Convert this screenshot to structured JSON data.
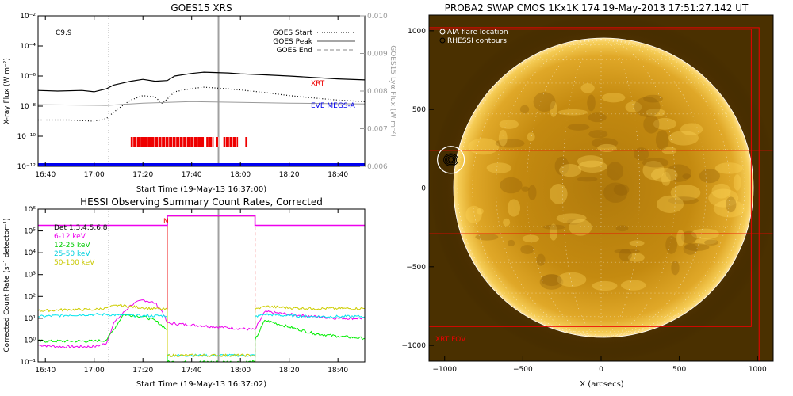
{
  "colors": {
    "goes_flux": "#000000",
    "goes_long_dotted": "#000000",
    "eve_lya": "#9a9a9a",
    "eve_megs_a": "#0000ee",
    "xrt_obs": "#ee0000",
    "peak_line": "#a0a0a0",
    "flare_box": "#ff0000",
    "fov_box": "#ee0000",
    "det_total": "#ee00ee",
    "band_6_12": "#ee00ee",
    "band_12_25": "#00ee00",
    "band_25_50": "#00e5ee",
    "band_50_100": "#cdcd00",
    "sun_disk": "#d69a10",
    "sun_limb": "#ffffff"
  },
  "chart_data": [
    {
      "type": "line",
      "title": "GOES15 XRS",
      "ylabel": "X-ray Flux (W m⁻²)",
      "y2label": "GOES15 Lyα Flux (W m⁻²)",
      "xlabel": "Start Time (19-May-13 16:37:00)",
      "annotation": "C9.9",
      "xlim": [
        "16:37",
        "18:51"
      ],
      "xticks": [
        "16:40",
        "17:00",
        "17:20",
        "17:40",
        "18:00",
        "18:20",
        "18:40"
      ],
      "ylim": [
        1e-12,
        0.01
      ],
      "yscale": "log",
      "yticks": [
        "10⁻²",
        "10⁻⁴",
        "10⁻⁶",
        "10⁻⁸",
        "10⁻¹⁰",
        "10⁻¹²"
      ],
      "y2lim": [
        0.006,
        0.01
      ],
      "y2ticks": [
        "0.010",
        "0.009",
        "0.008",
        "0.007",
        "0.006"
      ],
      "legend": {
        "position": "top-right",
        "entries": [
          "GOES Start",
          "GOES Peak",
          "GOES End"
        ]
      },
      "series": [
        {
          "name": "XRT",
          "x": [
            "16:37",
            "16:45",
            "16:55",
            "17:00",
            "17:05",
            "17:08",
            "17:15",
            "17:20",
            "17:25",
            "17:30",
            "17:33",
            "17:40",
            "17:45",
            "17:50",
            "17:55",
            "18:00",
            "18:10",
            "18:20",
            "18:30",
            "18:40",
            "18:51"
          ],
          "y": [
            1.1e-07,
            1e-07,
            1.1e-07,
            9e-08,
            1.4e-07,
            2.5e-07,
            4.5e-07,
            6e-07,
            4.5e-07,
            5e-07,
            1e-06,
            1.5e-06,
            1.8e-06,
            1.7e-06,
            1.6e-06,
            1.4e-06,
            1.2e-06,
            1e-06,
            8e-07,
            6.5e-07,
            5.5e-07
          ]
        },
        {
          "name": "",
          "x": [
            "16:37",
            "16:50",
            "17:00",
            "17:05",
            "17:08",
            "17:12",
            "17:15",
            "17:20",
            "17:25",
            "17:28",
            "17:30",
            "17:33",
            "17:40",
            "17:45",
            "17:50",
            "18:00",
            "18:10",
            "18:20",
            "18:30",
            "18:40",
            "18:51"
          ],
          "y": [
            1.2e-09,
            1.2e-09,
            1e-09,
            1.5e-09,
            4e-09,
            1.2e-08,
            2.5e-08,
            5e-08,
            4e-08,
            1.5e-08,
            3e-08,
            9e-08,
            1.5e-07,
            1.8e-07,
            1.6e-07,
            1.2e-07,
            8e-08,
            5e-08,
            3.5e-08,
            2.5e-08,
            2e-08
          ]
        },
        {
          "name": "EVE MEGS-A",
          "x": [
            "16:37",
            "18:51"
          ],
          "y": [
            1e-12,
            1e-12
          ]
        },
        {
          "name": "Lyα",
          "axis": "y2",
          "x": [
            "16:37",
            "17:05",
            "17:20",
            "17:40",
            "18:00",
            "18:20",
            "18:51"
          ],
          "y": [
            0.00764,
            0.00762,
            0.00768,
            0.00772,
            0.0077,
            0.00768,
            0.00766
          ]
        }
      ],
      "xrt_observation_intervals": [
        [
          "17:15",
          "17:45"
        ],
        [
          "17:46",
          "17:49"
        ],
        [
          "17:50",
          "17:51"
        ],
        [
          "17:53",
          "17:59"
        ],
        [
          "18:02",
          "18:03"
        ]
      ],
      "markers": {
        "goes_start": "17:06",
        "goes_peak": "17:51"
      }
    },
    {
      "type": "line",
      "title": "HESSI Observing Summary Count Rates, Corrected",
      "ylabel": "Corrected Count Rate (s⁻¹ detector⁻¹)",
      "xlabel": "Start Time (19-May-13 16:37:02)",
      "xlim": [
        "16:37",
        "18:51"
      ],
      "xticks": [
        "16:40",
        "17:00",
        "17:20",
        "17:40",
        "18:00",
        "18:20",
        "18:40"
      ],
      "ylim": [
        0.1,
        1000000.0
      ],
      "yscale": "log",
      "yticks": [
        "10⁶",
        "10⁵",
        "10⁴",
        "10³",
        "10²",
        "10¹",
        "10⁰",
        "10⁻¹"
      ],
      "legend": {
        "position": "top-left",
        "entries": [
          "Det 1,3,4,5,6,8",
          "6-12 keV",
          "12-25 keV",
          "25-50 keV",
          "50-100 keV"
        ]
      },
      "night_label": "N",
      "night_interval": [
        "17:30",
        "18:06"
      ],
      "markers": {
        "goes_start": "17:06",
        "goes_peak": "17:51",
        "night_start": "17:30",
        "night_end": "18:06"
      },
      "series": [
        {
          "name": "Det 1,3,4,5,6,8",
          "x": [
            "16:37",
            "17:30",
            "17:30",
            "18:06",
            "18:06",
            "18:51"
          ],
          "y": [
            180000,
            180000,
            500000,
            500000,
            180000,
            180000
          ]
        },
        {
          "name": "6-12 keV",
          "x": [
            "16:37",
            "16:45",
            "17:00",
            "17:05",
            "17:08",
            "17:15",
            "17:20",
            "17:25",
            "17:28",
            "17:30",
            "18:06",
            "18:10",
            "18:20",
            "18:30",
            "18:40",
            "18:51"
          ],
          "y": [
            0.6,
            0.5,
            0.5,
            0.7,
            6,
            40,
            70,
            50,
            20,
            6,
            3,
            20,
            15,
            12,
            10,
            10
          ]
        },
        {
          "name": "12-25 keV",
          "x": [
            "16:37",
            "16:50",
            "17:00",
            "17:05",
            "17:08",
            "17:12",
            "17:20",
            "17:25",
            "17:30",
            "17:30",
            "18:06",
            "18:06",
            "18:10",
            "18:20",
            "18:30",
            "18:40",
            "18:51"
          ],
          "y": [
            0.9,
            0.9,
            0.9,
            1.0,
            3,
            15,
            12,
            8,
            3,
            0.1,
            0.1,
            1.0,
            8,
            4,
            2,
            1.5,
            1.2
          ]
        },
        {
          "name": "25-50 keV",
          "x": [
            "16:37",
            "16:50",
            "17:00",
            "17:05",
            "17:10",
            "17:20",
            "17:30",
            "17:30",
            "18:06",
            "18:06",
            "18:10",
            "18:20",
            "18:30",
            "18:40",
            "18:51"
          ],
          "y": [
            12,
            14,
            15,
            15,
            14,
            13,
            13,
            0.2,
            0.2,
            12,
            15,
            13,
            12,
            12,
            12
          ]
        },
        {
          "name": "50-100 keV",
          "x": [
            "16:37",
            "16:50",
            "17:00",
            "17:05",
            "17:10",
            "17:20",
            "17:30",
            "17:30",
            "18:06",
            "18:06",
            "18:10",
            "18:20",
            "18:30",
            "18:40",
            "18:51"
          ],
          "y": [
            22,
            25,
            25,
            30,
            40,
            30,
            25,
            0.2,
            0.2,
            25,
            35,
            30,
            28,
            28,
            28
          ]
        }
      ]
    },
    {
      "type": "scatter",
      "title": "PROBA2 SWAP CMOS 1Kx1K 174 19-May-2013 17:51:27.142 UT",
      "xlabel": "X (arcsecs)",
      "ylabel": "",
      "xlim": [
        -1100,
        1100
      ],
      "ylim": [
        -1100,
        1100
      ],
      "xticks": [
        "-1000",
        "-500",
        "0",
        "500",
        "1000"
      ],
      "yticks": [
        "1000",
        "500",
        "0",
        "-500",
        "-1000"
      ],
      "solar_radius_arcsec": 950,
      "legend": {
        "position": "top-left",
        "entries": [
          "AIA flare location",
          "RHESSI contours"
        ]
      },
      "fov_label": "XRT FOV",
      "flare_location": [
        -960,
        180
      ],
      "xrt_fov_boxes": [
        {
          "x1": -1100,
          "y1": -880,
          "x2": 960,
          "y2": 1010
        },
        {
          "x1": -1100,
          "y1": -1100,
          "x2": 1010,
          "y2": 1020
        },
        {
          "x1": -1100,
          "y1": -290,
          "x2": 1100,
          "y2": 240
        }
      ]
    }
  ]
}
